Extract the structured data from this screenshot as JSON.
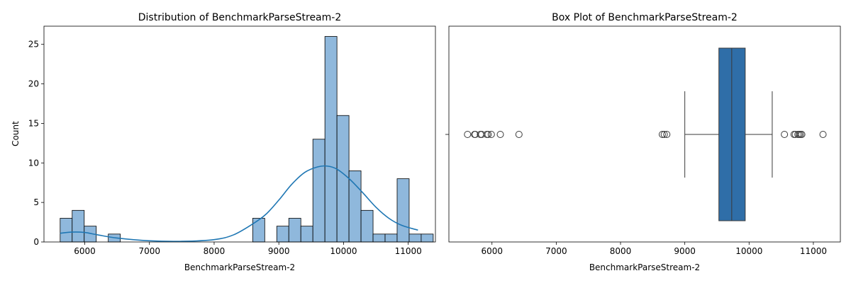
{
  "chart_data": [
    {
      "type": "bar",
      "title": "Distribution of BenchmarkParseStream-2",
      "xlabel": "BenchmarkParseStream-2",
      "ylabel": "Count",
      "xlim": [
        5370,
        11420
      ],
      "ylim": [
        0,
        27.3
      ],
      "xticks": [
        6000,
        7000,
        8000,
        9000,
        10000,
        11000
      ],
      "yticks": [
        0,
        5,
        10,
        15,
        20,
        25
      ],
      "bin_width": 186,
      "bins": [
        {
          "x0": 5620,
          "count": 3
        },
        {
          "x0": 5806,
          "count": 4
        },
        {
          "x0": 5992,
          "count": 2
        },
        {
          "x0": 6178,
          "count": 0
        },
        {
          "x0": 6364,
          "count": 1
        },
        {
          "x0": 6550,
          "count": 0
        },
        {
          "x0": 6736,
          "count": 0
        },
        {
          "x0": 6922,
          "count": 0
        },
        {
          "x0": 7108,
          "count": 0
        },
        {
          "x0": 7294,
          "count": 0
        },
        {
          "x0": 7480,
          "count": 0
        },
        {
          "x0": 7666,
          "count": 0
        },
        {
          "x0": 7852,
          "count": 0
        },
        {
          "x0": 8038,
          "count": 0
        },
        {
          "x0": 8224,
          "count": 0
        },
        {
          "x0": 8410,
          "count": 0
        },
        {
          "x0": 8596,
          "count": 3
        },
        {
          "x0": 8782,
          "count": 0
        },
        {
          "x0": 8968,
          "count": 2
        },
        {
          "x0": 9154,
          "count": 3
        },
        {
          "x0": 9340,
          "count": 2
        },
        {
          "x0": 9526,
          "count": 13
        },
        {
          "x0": 9712,
          "count": 26
        },
        {
          "x0": 9898,
          "count": 16
        },
        {
          "x0": 10084,
          "count": 9
        },
        {
          "x0": 10270,
          "count": 4
        },
        {
          "x0": 10456,
          "count": 1
        },
        {
          "x0": 10642,
          "count": 1
        },
        {
          "x0": 10828,
          "count": 8
        },
        {
          "x0": 11014,
          "count": 1
        },
        {
          "x0": 11200,
          "count": 1
        }
      ],
      "kde": {
        "x": [
          5620,
          5800,
          6000,
          6200,
          6500,
          7000,
          7500,
          8000,
          8300,
          8600,
          8800,
          9000,
          9200,
          9400,
          9600,
          9750,
          9900,
          10100,
          10300,
          10500,
          10700,
          10900,
          11150
        ],
        "y": [
          1.1,
          1.25,
          1.2,
          0.9,
          0.5,
          0.15,
          0.08,
          0.3,
          0.9,
          2.3,
          3.5,
          5.3,
          7.3,
          8.8,
          9.5,
          9.6,
          9.2,
          7.9,
          6.2,
          4.4,
          3.0,
          2.1,
          1.5
        ]
      },
      "bar_color": "#8fb8dc",
      "line_color": "#1f77b4"
    },
    {
      "type": "box",
      "title": "Box Plot of BenchmarkParseStream-2",
      "xlabel": "BenchmarkParseStream-2",
      "xlim": [
        5330,
        11420
      ],
      "xticks": [
        6000,
        7000,
        8000,
        9000,
        10000,
        11000
      ],
      "q1": 9530,
      "median": 9730,
      "q3": 9940,
      "whisker_low": 9000,
      "whisker_high": 10360,
      "outliers": [
        5620,
        5730,
        5740,
        5820,
        5840,
        5920,
        5940,
        5990,
        6130,
        6420,
        8650,
        8680,
        8720,
        10550,
        10700,
        10720,
        10760,
        10780,
        10800,
        10820,
        11150
      ],
      "box_color": "#2f6ea8"
    }
  ]
}
